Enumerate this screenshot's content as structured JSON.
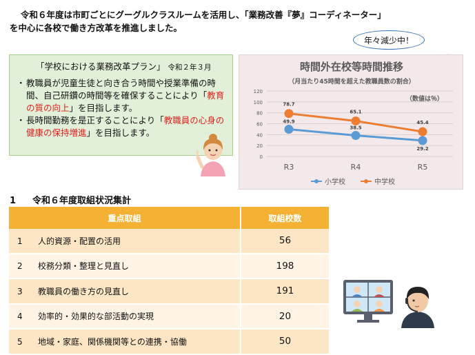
{
  "intro": {
    "line1": "令和６年度は市町ごとにグーグルクラスルームを活用し、「業務改善『夢』コーディネーター」",
    "line2": "を中心に各校で働き方改革を推進しました。"
  },
  "bubble": "年々減少中！",
  "plan": {
    "title": "「学校における業務改革プラン」",
    "date": "令和２年３月",
    "items": [
      {
        "bullet": "・",
        "text_before": "教職員が児童生徒と向き合う時間や授業準備の時間、自己研鑽の時間等を確保することにより「",
        "highlight": "教育の質の向上",
        "text_after": "」を目指します。"
      },
      {
        "bullet": "・",
        "text_before": "長時間勤務を是正することにより「",
        "highlight": "教職員の心身の健康の保持増進",
        "text_after": "」を目指します。"
      }
    ]
  },
  "chart_data": {
    "type": "line",
    "title": "時間外在校等時間推移",
    "subtitle": "（月当たり45時間を超えた教職員数の割合）",
    "unit_note": "（数値は％）",
    "categories": [
      "R3",
      "R4",
      "R5"
    ],
    "series": [
      {
        "name": "小学校",
        "color": "#5b9bd5",
        "values": [
          49.9,
          38.5,
          29.2
        ]
      },
      {
        "name": "中学校",
        "color": "#ed7d31",
        "values": [
          78.7,
          65.1,
          45.4
        ]
      }
    ],
    "ylim": [
      0,
      120
    ],
    "yticks": [
      0,
      20,
      40,
      60,
      80,
      100,
      120
    ],
    "grid": true,
    "legend": "bottom"
  },
  "section": {
    "number": "1",
    "title": "令和６年度取組状況集計"
  },
  "table": {
    "headers": [
      "重点取組",
      "取組校数"
    ],
    "rows": [
      {
        "no": "1",
        "label": "人的資源・配置の活用",
        "count": "56"
      },
      {
        "no": "2",
        "label": "校務分類・整理と見直し",
        "count": "198"
      },
      {
        "no": "3",
        "label": "教職員の働き方の見直し",
        "count": "191"
      },
      {
        "no": "4",
        "label": "効率的・効果的な部活動の実現",
        "count": "20"
      },
      {
        "no": "5",
        "label": "地域・家庭、関係機関等との連携・協働",
        "count": "50"
      }
    ]
  }
}
